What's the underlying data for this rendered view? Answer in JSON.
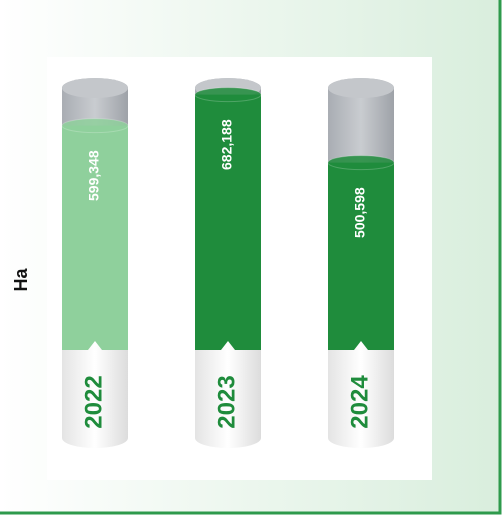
{
  "chart_data": {
    "type": "bar",
    "ylabel": "Ha",
    "categories": [
      "2022",
      "2023",
      "2024"
    ],
    "values": [
      599348,
      682188,
      500598
    ],
    "value_labels": [
      "599,348",
      "682,188",
      "500,598"
    ],
    "colors": [
      "#8fd09c",
      "#1f8c3c",
      "#1f8c3c"
    ],
    "ylim": [
      0,
      700000
    ]
  }
}
